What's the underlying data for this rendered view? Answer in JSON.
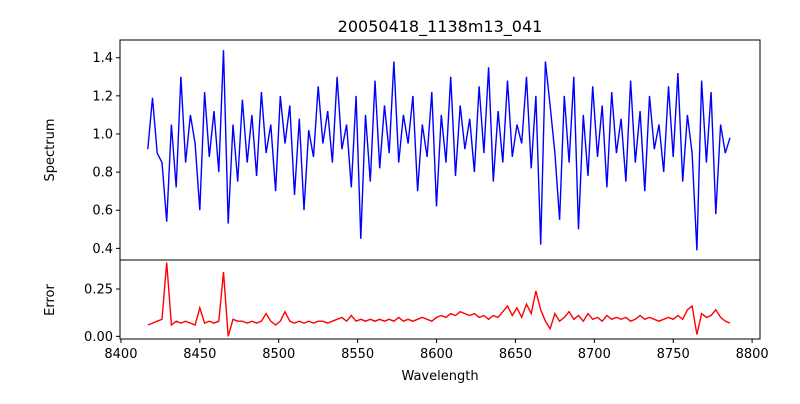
{
  "chart_data": [
    {
      "type": "line",
      "panel": "top",
      "title": "20050418_1138m13_041",
      "ylabel": "Spectrum",
      "xlabel": "",
      "color": "#0000ff",
      "xlim": [
        8399.4,
        8805
      ],
      "ylim": [
        0.339,
        1.493
      ],
      "yticks": [
        "0.4",
        "0.6",
        "0.8",
        "1.0",
        "1.2",
        "1.4"
      ],
      "x_start": 8417,
      "x_step": 3,
      "values": [
        0.92,
        1.19,
        0.9,
        0.85,
        0.54,
        1.05,
        0.72,
        1.3,
        0.85,
        1.1,
        0.95,
        0.6,
        1.22,
        0.88,
        1.12,
        0.8,
        1.44,
        0.53,
        1.05,
        0.75,
        1.18,
        0.85,
        1.1,
        0.78,
        1.22,
        0.9,
        1.05,
        0.7,
        1.2,
        0.95,
        1.15,
        0.68,
        1.08,
        0.6,
        1.02,
        0.88,
        1.25,
        0.95,
        1.12,
        0.85,
        1.3,
        0.92,
        1.05,
        0.72,
        1.2,
        0.45,
        1.1,
        0.75,
        1.28,
        0.82,
        1.15,
        0.9,
        1.38,
        0.85,
        1.1,
        0.95,
        1.2,
        0.7,
        1.05,
        0.88,
        1.22,
        0.62,
        1.1,
        0.85,
        1.3,
        0.78,
        1.15,
        0.92,
        1.08,
        0.8,
        1.25,
        0.9,
        1.35,
        0.75,
        1.12,
        0.85,
        1.28,
        0.88,
        1.05,
        0.95,
        1.3,
        0.82,
        1.2,
        0.42,
        1.38,
        1.15,
        0.9,
        0.55,
        1.2,
        0.85,
        1.3,
        0.5,
        1.1,
        0.78,
        1.25,
        0.88,
        1.15,
        0.72,
        1.22,
        0.9,
        1.08,
        0.75,
        1.28,
        0.85,
        1.12,
        0.7,
        1.2,
        0.92,
        1.05,
        0.8,
        1.25,
        0.88,
        1.32,
        0.75,
        1.1,
        0.9,
        0.39,
        1.28,
        0.85,
        1.22,
        0.58,
        1.05,
        0.9,
        0.98
      ]
    },
    {
      "type": "line",
      "panel": "bottom",
      "ylabel": "Error",
      "xlabel": "Wavelength",
      "color": "#ff0000",
      "xlim": [
        8399.4,
        8805
      ],
      "ylim": [
        -0.014,
        0.403
      ],
      "yticks": [
        "0.00",
        "0.25"
      ],
      "xticks": [
        "8400",
        "8450",
        "8500",
        "8550",
        "8600",
        "8650",
        "8700",
        "8750",
        "8800"
      ],
      "x_start": 8417,
      "x_step": 3,
      "values": [
        0.06,
        0.07,
        0.08,
        0.09,
        0.39,
        0.06,
        0.08,
        0.07,
        0.08,
        0.07,
        0.06,
        0.15,
        0.07,
        0.08,
        0.07,
        0.08,
        0.34,
        0.0,
        0.09,
        0.08,
        0.08,
        0.07,
        0.08,
        0.07,
        0.08,
        0.12,
        0.08,
        0.06,
        0.08,
        0.13,
        0.08,
        0.07,
        0.08,
        0.07,
        0.08,
        0.07,
        0.08,
        0.08,
        0.07,
        0.08,
        0.09,
        0.1,
        0.08,
        0.11,
        0.08,
        0.09,
        0.08,
        0.09,
        0.08,
        0.09,
        0.08,
        0.09,
        0.08,
        0.1,
        0.08,
        0.09,
        0.08,
        0.09,
        0.1,
        0.09,
        0.08,
        0.1,
        0.11,
        0.1,
        0.12,
        0.11,
        0.13,
        0.12,
        0.11,
        0.12,
        0.1,
        0.11,
        0.09,
        0.11,
        0.1,
        0.13,
        0.16,
        0.11,
        0.15,
        0.1,
        0.17,
        0.12,
        0.24,
        0.14,
        0.08,
        0.04,
        0.12,
        0.08,
        0.1,
        0.13,
        0.09,
        0.11,
        0.08,
        0.12,
        0.09,
        0.1,
        0.08,
        0.11,
        0.09,
        0.1,
        0.09,
        0.1,
        0.08,
        0.09,
        0.11,
        0.09,
        0.1,
        0.09,
        0.08,
        0.09,
        0.1,
        0.09,
        0.11,
        0.09,
        0.14,
        0.16,
        0.01,
        0.12,
        0.1,
        0.11,
        0.14,
        0.1,
        0.08,
        0.07
      ]
    }
  ]
}
